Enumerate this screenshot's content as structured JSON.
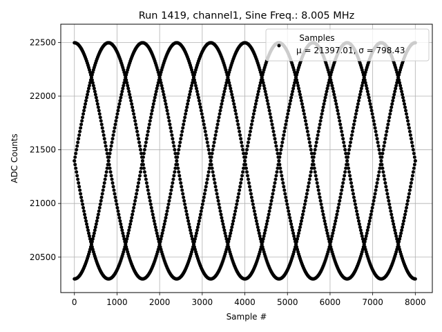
{
  "chart_data": {
    "type": "scatter",
    "title": "Run 1419, channel1, Sine Freq.: 8.005 MHz",
    "xlabel": "Sample #",
    "ylabel": "ADC Counts",
    "xlim": [
      -320,
      8400
    ],
    "ylim": [
      20170,
      22670
    ],
    "xticks": [
      0,
      1000,
      2000,
      3000,
      4000,
      5000,
      6000,
      7000,
      8000
    ],
    "yticks": [
      20500,
      21000,
      21500,
      22000,
      22500
    ],
    "grid": true,
    "legend": {
      "position": "upper right",
      "title": "Samples",
      "label": "μ = 21397.01, σ = 798.43"
    },
    "series": [
      {
        "marker_color": "#000000",
        "signal": {
          "mean": 21397.01,
          "amplitude": 1100,
          "envelope_period_samples": 1600,
          "offset_samples": 2400,
          "sample_phases": [
            0,
            0.25,
            0.5,
            0.75
          ],
          "ramp_peak_at": 0.75,
          "x_range": [
            0,
            8000
          ],
          "stats": {
            "mean": 21397.01,
            "std": 798.43
          }
        }
      }
    ]
  }
}
